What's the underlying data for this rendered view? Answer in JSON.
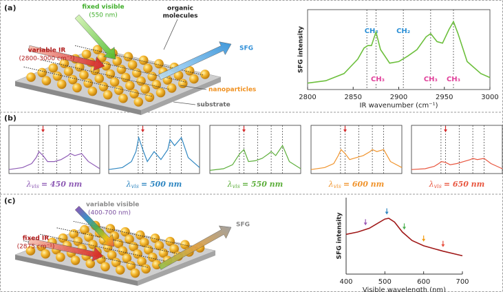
{
  "panel_labels": [
    "(a)",
    "(b)",
    "(c)"
  ],
  "diagram_a": {
    "fixed_visible": "fixed visible",
    "fixed_visible_wl": "(550 nm)",
    "organic": "organic",
    "molecules": "molecules",
    "variable_ir": "variable IR",
    "ir_range": "(2800-3000 cm⁻¹)",
    "sfg": "SFG",
    "nanoparticles": "nanoparticles",
    "substrate": "substrate"
  },
  "diagram_c": {
    "variable_visible": "variable visible",
    "vis_range": "(400-700 nm)",
    "fixed_ir": "fixed IR",
    "ir_value": "(2875 cm⁻¹)",
    "sfg": "SFG"
  },
  "chart_data": [
    {
      "type": "line",
      "xlabel": "IR wavenumber (cm⁻¹)",
      "ylabel": "SFG intensity",
      "x": [
        2800,
        2820,
        2840,
        2855,
        2862,
        2866,
        2870,
        2875,
        2880,
        2890,
        2900,
        2910,
        2920,
        2930,
        2935,
        2942,
        2948,
        2955,
        2960,
        2965,
        2975,
        2990,
        3000
      ],
      "series": [
        {
          "color": "#6cbf3c",
          "values": [
            0.08,
            0.11,
            0.2,
            0.38,
            0.52,
            0.55,
            0.55,
            0.72,
            0.5,
            0.33,
            0.35,
            0.42,
            0.5,
            0.66,
            0.7,
            0.6,
            0.58,
            0.75,
            0.85,
            0.7,
            0.35,
            0.2,
            0.15
          ]
        }
      ],
      "xlim": [
        2800,
        3000
      ],
      "ylim": [
        0,
        1
      ],
      "xticks": [
        2800,
        2850,
        2900,
        2950,
        3000
      ],
      "vlines": [
        2865,
        2875,
        2905,
        2935,
        2960
      ],
      "annotation_groups": [
        {
          "color": "#2b8fd6",
          "labels": [
            {
              "text": "CH₂",
              "x": 2870
            },
            {
              "text": "CH₂",
              "x": 2905
            }
          ]
        },
        {
          "color": "#e0409a",
          "labels": [
            {
              "text": "CH₃",
              "x": 2877
            },
            {
              "text": "CH₃",
              "x": 2935
            },
            {
              "text": "CH₃",
              "x": 2960
            }
          ]
        }
      ],
      "frame": true
    },
    {
      "type": "line",
      "x": [
        2800,
        2830,
        2850,
        2860,
        2866,
        2875,
        2885,
        2900,
        2915,
        2930,
        2935,
        2945,
        2960,
        2975,
        3000
      ],
      "series": [
        {
          "color": "#8e5bb5",
          "values": [
            0.1,
            0.15,
            0.25,
            0.4,
            0.55,
            0.45,
            0.3,
            0.3,
            0.35,
            0.45,
            0.5,
            0.45,
            0.5,
            0.3,
            0.12
          ]
        }
      ],
      "xlim": [
        2800,
        3000
      ],
      "ylim": [
        0,
        1
      ],
      "vlines": [
        2865,
        2875,
        2905,
        2935,
        2960
      ],
      "markers": [
        {
          "x": 2875,
          "color": "#d62728"
        }
      ],
      "label": {
        "symbol": "λ",
        "subscript": "vis",
        "text": "= 450 nm"
      },
      "frame": true
    },
    {
      "type": "line",
      "x": [
        2800,
        2830,
        2850,
        2860,
        2866,
        2875,
        2885,
        2900,
        2915,
        2930,
        2935,
        2945,
        2960,
        2975,
        3000
      ],
      "series": [
        {
          "color": "#2e86c1",
          "values": [
            0.1,
            0.15,
            0.3,
            0.55,
            0.9,
            0.6,
            0.3,
            0.55,
            0.35,
            0.6,
            0.85,
            0.7,
            0.9,
            0.4,
            0.15
          ]
        }
      ],
      "xlim": [
        2800,
        3000
      ],
      "ylim": [
        0,
        1
      ],
      "vlines": [
        2865,
        2875,
        2905,
        2935,
        2960
      ],
      "markers": [
        {
          "x": 2875,
          "color": "#d62728"
        }
      ],
      "label": {
        "symbol": "λ",
        "subscript": "vis",
        "text": "= 500 nm"
      },
      "frame": true
    },
    {
      "type": "line",
      "x": [
        2800,
        2830,
        2850,
        2860,
        2866,
        2875,
        2885,
        2900,
        2915,
        2930,
        2935,
        2945,
        2960,
        2975,
        3000
      ],
      "series": [
        {
          "color": "#5cae3a",
          "values": [
            0.08,
            0.12,
            0.22,
            0.4,
            0.5,
            0.6,
            0.3,
            0.32,
            0.38,
            0.5,
            0.55,
            0.45,
            0.7,
            0.3,
            0.12
          ]
        }
      ],
      "xlim": [
        2800,
        3000
      ],
      "ylim": [
        0,
        1
      ],
      "vlines": [
        2865,
        2875,
        2905,
        2935,
        2960
      ],
      "markers": [
        {
          "x": 2875,
          "color": "#d62728"
        }
      ],
      "label": {
        "symbol": "λ",
        "subscript": "vis",
        "text": "= 550 nm"
      },
      "frame": true
    },
    {
      "type": "line",
      "x": [
        2800,
        2830,
        2850,
        2860,
        2866,
        2875,
        2885,
        2900,
        2915,
        2930,
        2935,
        2945,
        2960,
        2975,
        3000
      ],
      "series": [
        {
          "color": "#f0932b",
          "values": [
            0.1,
            0.15,
            0.25,
            0.45,
            0.6,
            0.5,
            0.35,
            0.4,
            0.45,
            0.55,
            0.6,
            0.55,
            0.6,
            0.3,
            0.15
          ]
        }
      ],
      "xlim": [
        2800,
        3000
      ],
      "ylim": [
        0,
        1
      ],
      "vlines": [
        2865,
        2875,
        2905,
        2935,
        2960
      ],
      "markers": [
        {
          "x": 2875,
          "color": "#d62728"
        }
      ],
      "label": {
        "symbol": "λ",
        "subscript": "vis",
        "text": "= 600 nm"
      },
      "frame": true
    },
    {
      "type": "line",
      "x": [
        2800,
        2830,
        2850,
        2860,
        2866,
        2875,
        2885,
        2900,
        2915,
        2930,
        2935,
        2945,
        2960,
        2975,
        3000
      ],
      "series": [
        {
          "color": "#e8553e",
          "values": [
            0.1,
            0.12,
            0.18,
            0.25,
            0.3,
            0.28,
            0.22,
            0.25,
            0.3,
            0.35,
            0.38,
            0.35,
            0.38,
            0.25,
            0.12
          ]
        }
      ],
      "xlim": [
        2800,
        3000
      ],
      "ylim": [
        0,
        1
      ],
      "vlines": [
        2865,
        2875,
        2905,
        2935,
        2960
      ],
      "markers": [
        {
          "x": 2875,
          "color": "#d62728"
        }
      ],
      "label": {
        "symbol": "λ",
        "subscript": "vis",
        "text": "= 650 nm"
      },
      "frame": true
    },
    {
      "type": "line",
      "xlabel": "Visible wavelength (nm)",
      "ylabel": "SFG intensity",
      "x": [
        400,
        430,
        460,
        480,
        500,
        510,
        525,
        545,
        570,
        600,
        650,
        700
      ],
      "series": [
        {
          "color": "#a01818",
          "values": [
            0.52,
            0.55,
            0.6,
            0.66,
            0.72,
            0.73,
            0.68,
            0.55,
            0.44,
            0.37,
            0.3,
            0.24
          ]
        }
      ],
      "xlim": [
        400,
        700
      ],
      "ylim": [
        0,
        1
      ],
      "xticks": [
        400,
        500,
        600,
        700
      ],
      "markers": [
        {
          "x": 450,
          "color": "#9b59b6"
        },
        {
          "x": 505,
          "color": "#2e86c1"
        },
        {
          "x": 550,
          "color": "#4caf50"
        },
        {
          "x": 600,
          "color": "#f39c12"
        },
        {
          "x": 650,
          "color": "#e74c3c"
        }
      ],
      "frame": false
    }
  ]
}
